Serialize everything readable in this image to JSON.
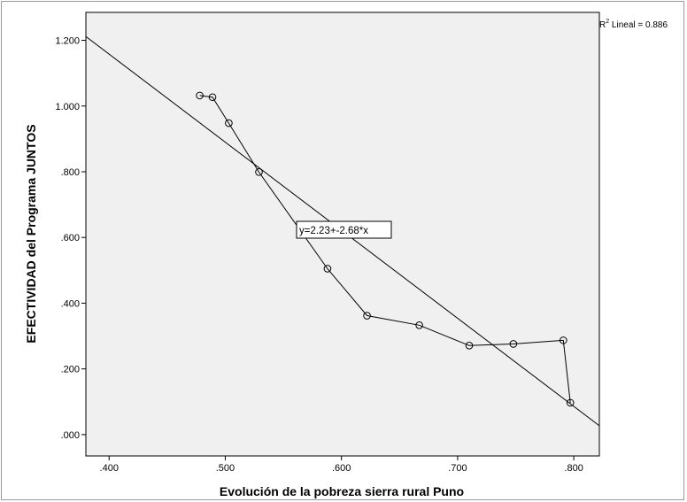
{
  "chart_data": {
    "type": "scatter",
    "title": "",
    "xlabel": "Evolución de la pobreza sierra rural Puno",
    "ylabel": "EFECTIVIDAD del Programa JUNTOS",
    "xlim": [
      0.38,
      0.822
    ],
    "ylim": [
      -0.065,
      1.285
    ],
    "x_ticks": [
      0.4,
      0.5,
      0.6,
      0.7,
      0.8
    ],
    "x_tick_labels": [
      ".400",
      ".500",
      ".600",
      ".700",
      ".800"
    ],
    "y_ticks": [
      0.0,
      0.2,
      0.4,
      0.6,
      0.8,
      1.0,
      1.2
    ],
    "y_tick_labels": [
      ".000",
      ".200",
      ".400",
      ".600",
      ".800",
      "1.000",
      "1.200"
    ],
    "grid": false,
    "points": [
      {
        "x": 0.478,
        "y": 1.032
      },
      {
        "x": 0.489,
        "y": 1.027
      },
      {
        "x": 0.503,
        "y": 0.948
      },
      {
        "x": 0.529,
        "y": 0.799
      },
      {
        "x": 0.588,
        "y": 0.505
      },
      {
        "x": 0.622,
        "y": 0.362
      },
      {
        "x": 0.667,
        "y": 0.333
      },
      {
        "x": 0.71,
        "y": 0.271
      },
      {
        "x": 0.748,
        "y": 0.276
      },
      {
        "x": 0.791,
        "y": 0.287
      },
      {
        "x": 0.797,
        "y": 0.097
      }
    ],
    "connect_points": true,
    "fit_line": {
      "intercept": 2.23,
      "slope": -2.68,
      "label": "y=2.23+-2.68*x"
    },
    "r2_label_prefix": "R",
    "r2_label_superscript": "2",
    "r2_label_suffix": " Lineal = 0.886",
    "colors": {
      "plot_background": "#f0f0f0",
      "line": "#000000",
      "marker": "#000000"
    }
  }
}
